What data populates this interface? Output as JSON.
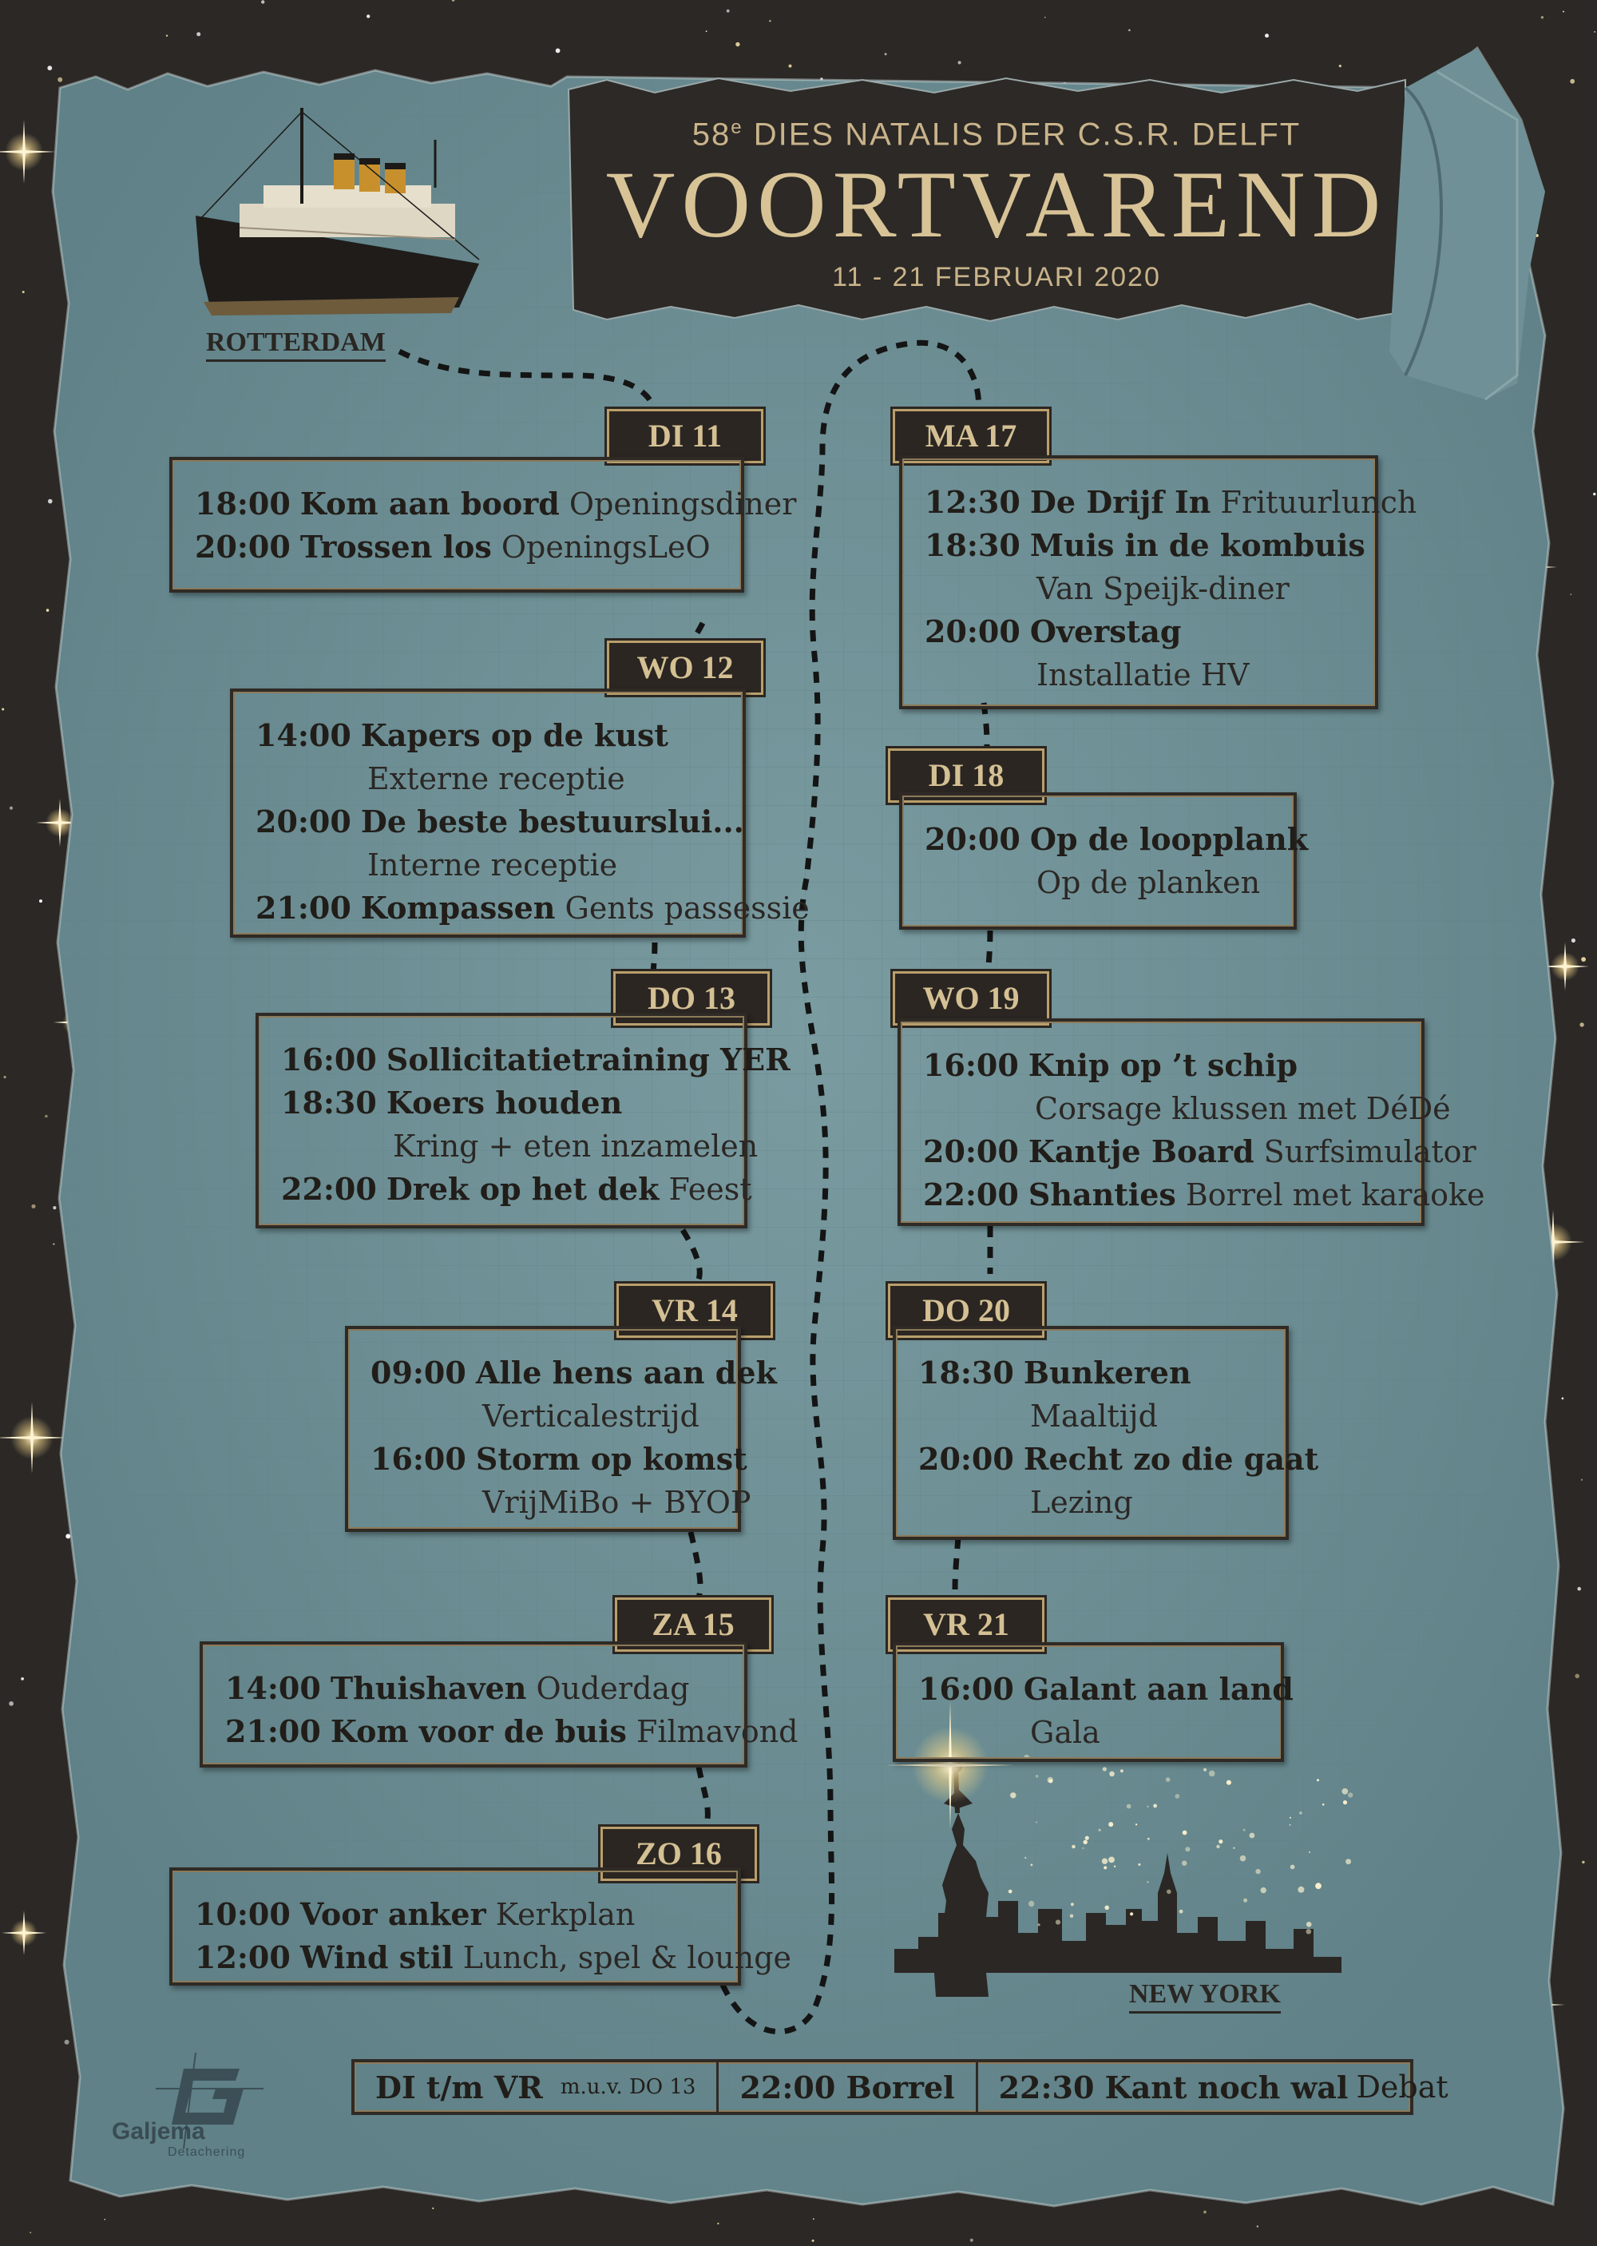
{
  "header": {
    "subtitle_num": "58",
    "subtitle_sup": "e",
    "subtitle_rest": " DIES NATALIS DER C.S.R. DELFT",
    "title": "VOORTVAREND",
    "dates": "11 - 21 FEBRUARI 2020"
  },
  "places": {
    "start": "ROTTERDAM",
    "end": "NEW YORK"
  },
  "days": [
    {
      "label": "DI 11",
      "events": [
        {
          "time": "18:00",
          "title": "Kom aan boord",
          "desc": "Openingsdiner",
          "wrap": false
        },
        {
          "time": "20:00",
          "title": "Trossen los",
          "desc": "OpeningsLeO",
          "wrap": false
        }
      ]
    },
    {
      "label": "WO 12",
      "events": [
        {
          "time": "14:00",
          "title": "Kapers op de kust",
          "desc": "Externe receptie",
          "wrap": true
        },
        {
          "time": "20:00",
          "title": "De beste bestuurslui...",
          "desc": "Interne receptie",
          "wrap": true
        },
        {
          "time": "21:00",
          "title": "Kompassen",
          "desc": "Gents passessie",
          "wrap": false
        }
      ]
    },
    {
      "label": "DO 13",
      "events": [
        {
          "time": "16:00",
          "title": "Sollicitatietraining YER",
          "desc": "",
          "wrap": false
        },
        {
          "time": "18:30",
          "title": "Koers houden",
          "desc": "Kring + eten inzamelen",
          "wrap": true
        },
        {
          "time": "22:00",
          "title": "Drek op het dek",
          "desc": "Feest",
          "wrap": false
        }
      ]
    },
    {
      "label": "VR 14",
      "events": [
        {
          "time": "09:00",
          "title": "Alle hens aan dek",
          "desc": "Verticalestrijd",
          "wrap": true
        },
        {
          "time": "16:00",
          "title": "Storm op komst",
          "desc": "VrijMiBo + BYOP",
          "wrap": true
        }
      ]
    },
    {
      "label": "ZA 15",
      "events": [
        {
          "time": "14:00",
          "title": "Thuishaven",
          "desc": "Ouderdag",
          "wrap": false
        },
        {
          "time": "21:00",
          "title": "Kom voor de buis",
          "desc": "Filmavond",
          "wrap": false
        }
      ]
    },
    {
      "label": "ZO 16",
      "events": [
        {
          "time": "10:00",
          "title": "Voor anker",
          "desc": "Kerkplan",
          "wrap": false
        },
        {
          "time": "12:00",
          "title": "Wind stil",
          "desc": "Lunch, spel & lounge",
          "wrap": false
        }
      ]
    },
    {
      "label": "MA 17",
      "events": [
        {
          "time": "12:30",
          "title": "De Drijf In",
          "desc": "Frituurlunch",
          "wrap": false
        },
        {
          "time": "18:30",
          "title": "Muis in de kombuis",
          "desc": "Van Speijk-diner",
          "wrap": true
        },
        {
          "time": "20:00",
          "title": "Overstag",
          "desc": "Installatie HV",
          "wrap": true
        }
      ]
    },
    {
      "label": "DI 18",
      "events": [
        {
          "time": "20:00",
          "title": "Op de loopplank",
          "desc": "Op de planken",
          "wrap": true
        }
      ]
    },
    {
      "label": "WO 19",
      "events": [
        {
          "time": "16:00",
          "title": "Knip op ’t schip",
          "desc": "Corsage klussen met DéDé",
          "wrap": true
        },
        {
          "time": "20:00",
          "title": "Kantje Board",
          "desc": "Surfsimulator",
          "wrap": false
        },
        {
          "time": "22:00",
          "title": "Shanties",
          "desc": "Borrel met karaoke",
          "wrap": false
        }
      ]
    },
    {
      "label": "DO 20",
      "events": [
        {
          "time": "18:30",
          "title": "Bunkeren",
          "desc": "Maaltijd",
          "wrap": true
        },
        {
          "time": "20:00",
          "title": "Recht zo die gaat",
          "desc": "Lezing",
          "wrap": true
        }
      ]
    },
    {
      "label": "VR 21",
      "events": [
        {
          "time": "16:00",
          "title": "Galant aan land",
          "desc": "Gala",
          "wrap": true
        }
      ]
    }
  ],
  "footer": {
    "days": "DI t/m VR",
    "note": "m.u.v. DO 13",
    "borrel": "22:00 Borrel",
    "debat_title": "22:30 Kant noch wal",
    "debat_desc": "Debat"
  },
  "sponsor": {
    "name": "Galjema",
    "sub": "Detachering"
  },
  "colors": {
    "paper": "#6e9096",
    "background": "#2b2826",
    "gold": "#c9b38a",
    "ink": "#211d19"
  }
}
